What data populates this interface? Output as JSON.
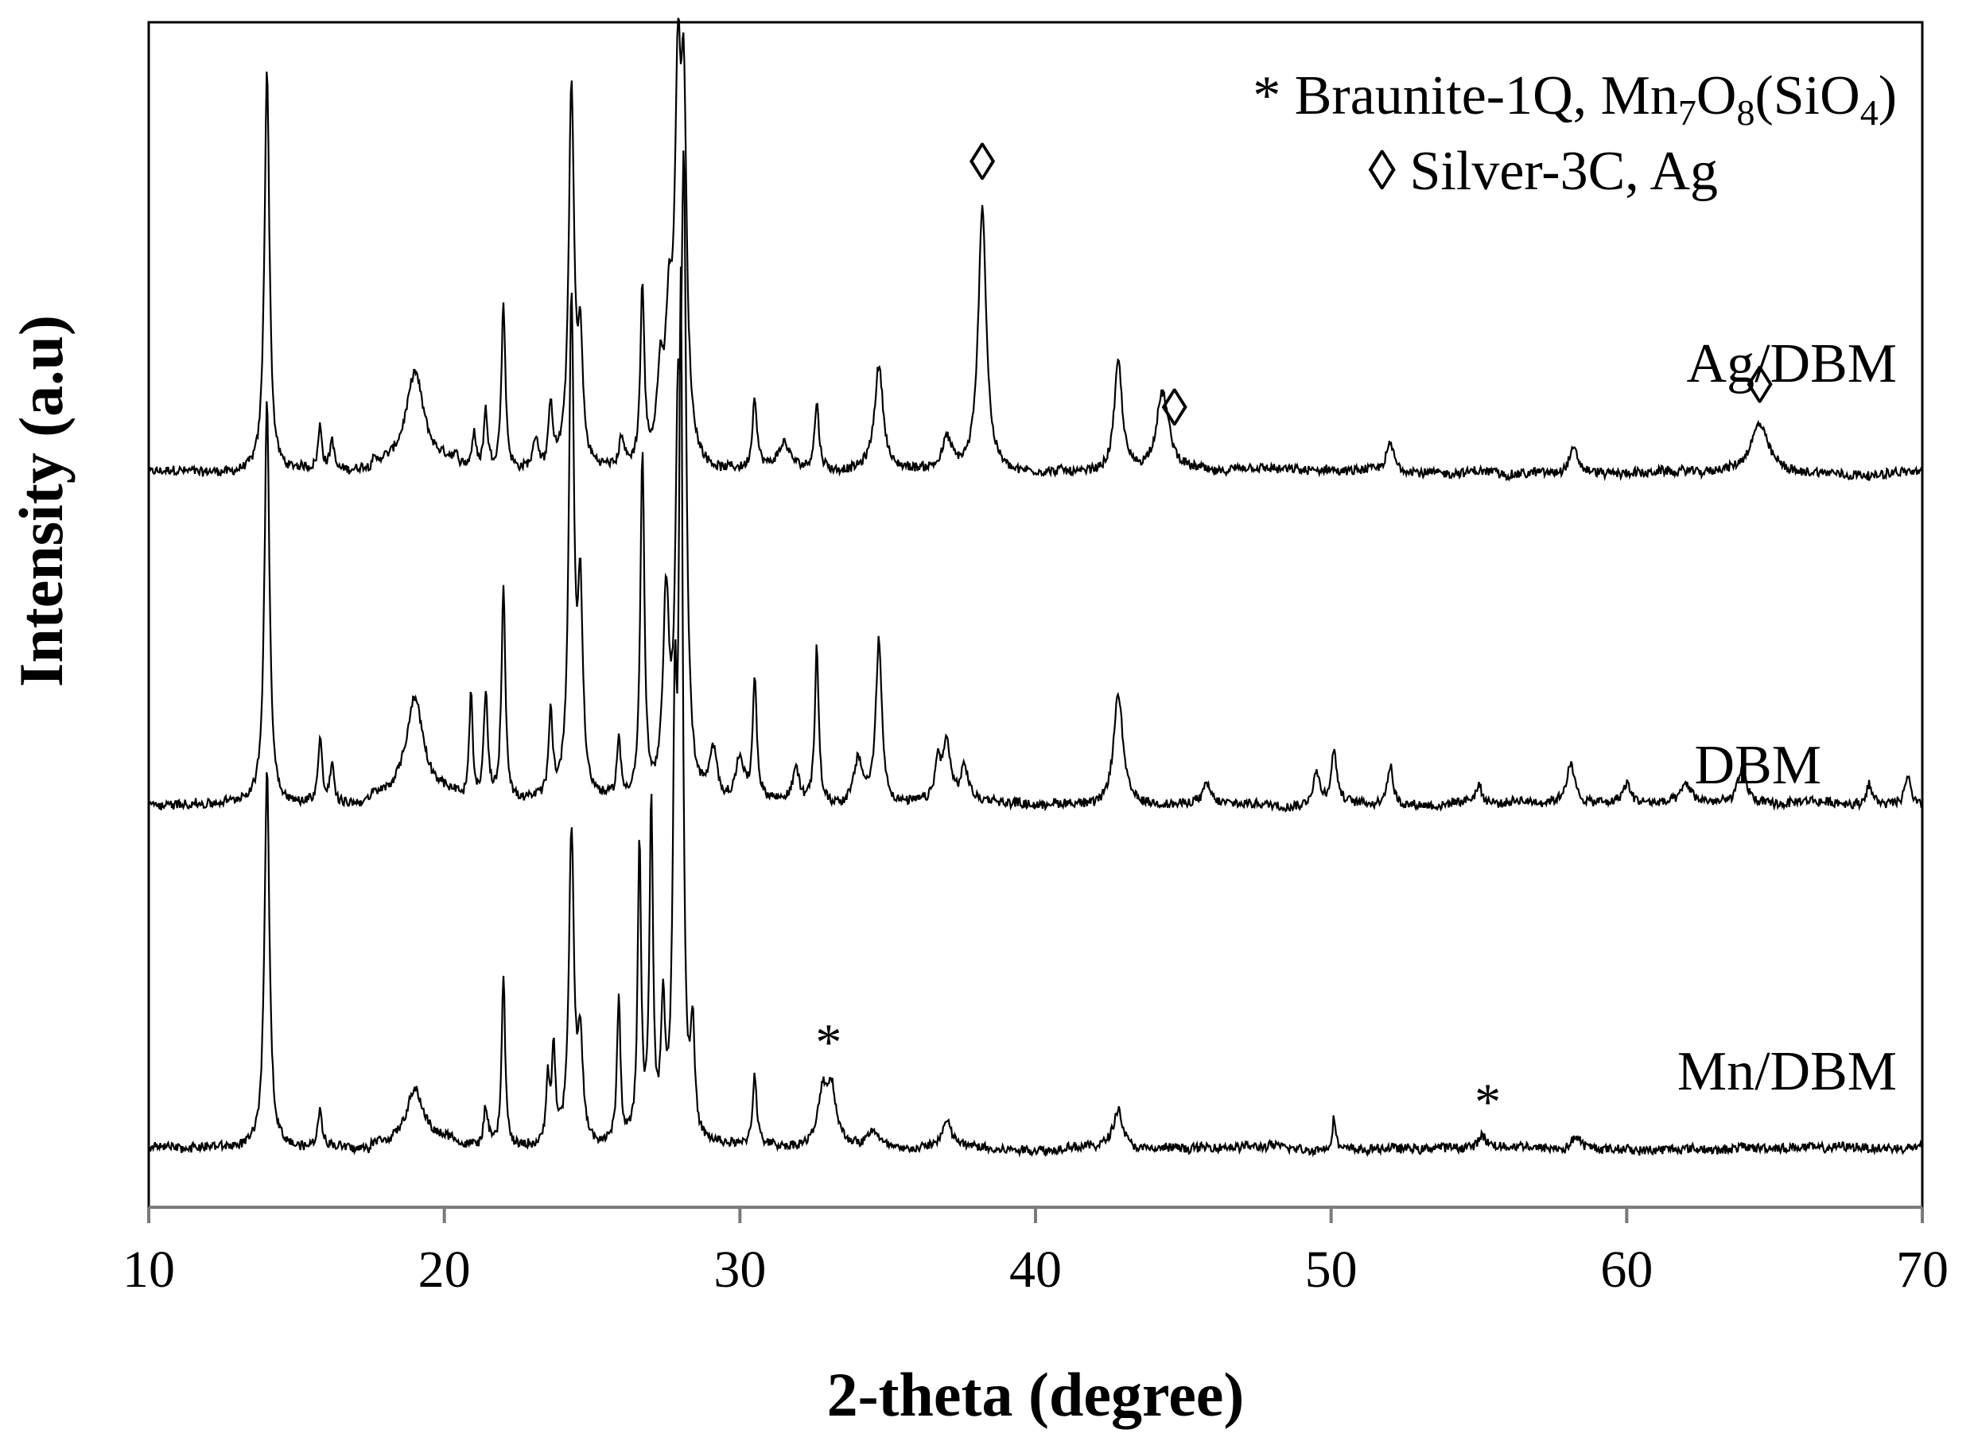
{
  "chart_data": {
    "type": "line",
    "title": "",
    "xlabel": "2-theta (degree)",
    "ylabel": "Intensity (a.u)",
    "xlim": [
      10,
      70
    ],
    "xticks": [
      "10",
      "20",
      "30",
      "40",
      "50",
      "60",
      "70"
    ],
    "grid": false,
    "legend": {
      "placement": "top-right",
      "entries": [
        {
          "symbol": "*",
          "label": "Braunite-1Q, Mn",
          "formula": [
            {
              "t": "* Braunite-1Q, Mn",
              "sub": false
            },
            {
              "t": "7",
              "sub": true
            },
            {
              "t": "O",
              "sub": false
            },
            {
              "t": "8",
              "sub": true
            },
            {
              "t": "(SiO",
              "sub": false
            },
            {
              "t": "4",
              "sub": true
            },
            {
              "t": ")",
              "sub": false
            }
          ]
        },
        {
          "symbol": "◊",
          "label": "◊ Silver-3C, Ag"
        }
      ]
    },
    "series": [
      {
        "name": "Ag/DBM",
        "baseline": 0.62,
        "scale": 0.55,
        "peaks": [
          {
            "x": 14.0,
            "y": 0.62,
            "w": 0.1
          },
          {
            "x": 15.8,
            "y": 0.07,
            "w": 0.08
          },
          {
            "x": 16.2,
            "y": 0.05,
            "w": 0.08
          },
          {
            "x": 19.0,
            "y": 0.14,
            "w": 0.35
          },
          {
            "x": 21.0,
            "y": 0.05,
            "w": 0.08
          },
          {
            "x": 21.4,
            "y": 0.09,
            "w": 0.08
          },
          {
            "x": 22.0,
            "y": 0.26,
            "w": 0.08
          },
          {
            "x": 23.1,
            "y": 0.05,
            "w": 0.1
          },
          {
            "x": 23.6,
            "y": 0.1,
            "w": 0.08
          },
          {
            "x": 24.3,
            "y": 0.58,
            "w": 0.11
          },
          {
            "x": 24.6,
            "y": 0.18,
            "w": 0.1
          },
          {
            "x": 26.0,
            "y": 0.05,
            "w": 0.1
          },
          {
            "x": 26.7,
            "y": 0.27,
            "w": 0.08
          },
          {
            "x": 27.3,
            "y": 0.12,
            "w": 0.12
          },
          {
            "x": 27.6,
            "y": 0.2,
            "w": 0.15
          },
          {
            "x": 27.9,
            "y": 0.52,
            "w": 0.12
          },
          {
            "x": 28.1,
            "y": 0.5,
            "w": 0.12
          },
          {
            "x": 30.5,
            "y": 0.11,
            "w": 0.09
          },
          {
            "x": 31.5,
            "y": 0.04,
            "w": 0.2
          },
          {
            "x": 32.6,
            "y": 0.1,
            "w": 0.09
          },
          {
            "x": 34.7,
            "y": 0.16,
            "w": 0.18
          },
          {
            "x": 37.0,
            "y": 0.05,
            "w": 0.2
          },
          {
            "x": 38.2,
            "y": 0.41,
            "w": 0.16
          },
          {
            "x": 42.8,
            "y": 0.17,
            "w": 0.16
          },
          {
            "x": 44.3,
            "y": 0.12,
            "w": 0.25
          },
          {
            "x": 52.0,
            "y": 0.04,
            "w": 0.15
          },
          {
            "x": 58.2,
            "y": 0.04,
            "w": 0.2
          },
          {
            "x": 64.5,
            "y": 0.07,
            "w": 0.35
          }
        ]
      },
      {
        "name": "DBM",
        "baseline": 0.34,
        "scale": 0.55,
        "peaks": [
          {
            "x": 14.0,
            "y": 0.62,
            "w": 0.1
          },
          {
            "x": 15.8,
            "y": 0.1,
            "w": 0.08
          },
          {
            "x": 16.2,
            "y": 0.06,
            "w": 0.08
          },
          {
            "x": 19.0,
            "y": 0.15,
            "w": 0.35
          },
          {
            "x": 20.9,
            "y": 0.16,
            "w": 0.07
          },
          {
            "x": 21.4,
            "y": 0.17,
            "w": 0.08
          },
          {
            "x": 22.0,
            "y": 0.33,
            "w": 0.08
          },
          {
            "x": 23.6,
            "y": 0.13,
            "w": 0.08
          },
          {
            "x": 24.3,
            "y": 0.76,
            "w": 0.1
          },
          {
            "x": 24.6,
            "y": 0.3,
            "w": 0.1
          },
          {
            "x": 25.9,
            "y": 0.09,
            "w": 0.08
          },
          {
            "x": 26.7,
            "y": 0.53,
            "w": 0.08
          },
          {
            "x": 27.5,
            "y": 0.3,
            "w": 0.12
          },
          {
            "x": 27.9,
            "y": 0.46,
            "w": 0.1
          },
          {
            "x": 28.1,
            "y": 0.9,
            "w": 0.1
          },
          {
            "x": 29.1,
            "y": 0.07,
            "w": 0.15
          },
          {
            "x": 30.0,
            "y": 0.07,
            "w": 0.15
          },
          {
            "x": 30.5,
            "y": 0.19,
            "w": 0.08
          },
          {
            "x": 31.9,
            "y": 0.05,
            "w": 0.12
          },
          {
            "x": 32.6,
            "y": 0.24,
            "w": 0.08
          },
          {
            "x": 34.0,
            "y": 0.07,
            "w": 0.18
          },
          {
            "x": 34.7,
            "y": 0.25,
            "w": 0.12
          },
          {
            "x": 36.7,
            "y": 0.06,
            "w": 0.12
          },
          {
            "x": 37.0,
            "y": 0.09,
            "w": 0.15
          },
          {
            "x": 37.6,
            "y": 0.05,
            "w": 0.15
          },
          {
            "x": 42.8,
            "y": 0.17,
            "w": 0.18
          },
          {
            "x": 45.8,
            "y": 0.03,
            "w": 0.15
          },
          {
            "x": 49.5,
            "y": 0.05,
            "w": 0.15
          },
          {
            "x": 50.1,
            "y": 0.08,
            "w": 0.12
          },
          {
            "x": 52.0,
            "y": 0.06,
            "w": 0.12
          },
          {
            "x": 55.0,
            "y": 0.03,
            "w": 0.12
          },
          {
            "x": 58.1,
            "y": 0.06,
            "w": 0.18
          },
          {
            "x": 60.0,
            "y": 0.03,
            "w": 0.15
          },
          {
            "x": 62.0,
            "y": 0.03,
            "w": 0.2
          },
          {
            "x": 63.9,
            "y": 0.05,
            "w": 0.2
          },
          {
            "x": 68.2,
            "y": 0.03,
            "w": 0.12
          },
          {
            "x": 69.5,
            "y": 0.05,
            "w": 0.12
          }
        ]
      },
      {
        "name": "Mn/DBM",
        "baseline": 0.05,
        "scale": 0.55,
        "peaks": [
          {
            "x": 14.0,
            "y": 0.58,
            "w": 0.1
          },
          {
            "x": 15.8,
            "y": 0.06,
            "w": 0.08
          },
          {
            "x": 19.0,
            "y": 0.08,
            "w": 0.35
          },
          {
            "x": 21.4,
            "y": 0.06,
            "w": 0.08
          },
          {
            "x": 22.0,
            "y": 0.27,
            "w": 0.07
          },
          {
            "x": 23.5,
            "y": 0.1,
            "w": 0.07
          },
          {
            "x": 23.7,
            "y": 0.14,
            "w": 0.07
          },
          {
            "x": 24.3,
            "y": 0.48,
            "w": 0.1
          },
          {
            "x": 24.6,
            "y": 0.15,
            "w": 0.1
          },
          {
            "x": 25.9,
            "y": 0.22,
            "w": 0.07
          },
          {
            "x": 26.6,
            "y": 0.46,
            "w": 0.07
          },
          {
            "x": 27.0,
            "y": 0.52,
            "w": 0.07
          },
          {
            "x": 27.4,
            "y": 0.2,
            "w": 0.08
          },
          {
            "x": 27.8,
            "y": 0.6,
            "w": 0.08
          },
          {
            "x": 28.0,
            "y": 1.26,
            "w": 0.08
          },
          {
            "x": 28.4,
            "y": 0.16,
            "w": 0.08
          },
          {
            "x": 30.5,
            "y": 0.11,
            "w": 0.08
          },
          {
            "x": 32.8,
            "y": 0.08,
            "w": 0.18
          },
          {
            "x": 33.1,
            "y": 0.08,
            "w": 0.18
          },
          {
            "x": 34.5,
            "y": 0.03,
            "w": 0.2
          },
          {
            "x": 37.0,
            "y": 0.04,
            "w": 0.2
          },
          {
            "x": 42.8,
            "y": 0.06,
            "w": 0.2
          },
          {
            "x": 50.1,
            "y": 0.05,
            "w": 0.07
          },
          {
            "x": 55.1,
            "y": 0.02,
            "w": 0.15
          },
          {
            "x": 58.3,
            "y": 0.02,
            "w": 0.2
          }
        ]
      }
    ],
    "markers": [
      {
        "symbol": "◊",
        "x": 38.2,
        "series": "Ag/DBM"
      },
      {
        "symbol": "◊",
        "x": 44.7,
        "series": "Ag/DBM"
      },
      {
        "symbol": "◊",
        "x": 64.5,
        "series": "Ag/DBM"
      },
      {
        "symbol": "*",
        "x": 33.0,
        "series": "Mn/DBM"
      },
      {
        "symbol": "*",
        "x": 55.3,
        "series": "Mn/DBM"
      }
    ]
  }
}
